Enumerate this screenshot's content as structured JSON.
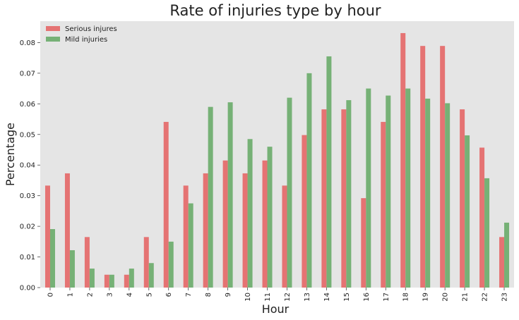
{
  "chart_data": {
    "type": "bar",
    "title": "Rate of injuries type by hour",
    "xlabel": "Hour",
    "ylabel": "Percentage",
    "categories": [
      "0",
      "1",
      "2",
      "3",
      "4",
      "5",
      "6",
      "7",
      "8",
      "9",
      "10",
      "11",
      "12",
      "13",
      "14",
      "15",
      "16",
      "17",
      "18",
      "19",
      "20",
      "21",
      "22",
      "23"
    ],
    "series": [
      {
        "name": "Serious injures",
        "color": "#e57373",
        "values": [
          0.0333,
          0.0373,
          0.0165,
          0.0042,
          0.0042,
          0.0165,
          0.0541,
          0.0333,
          0.0373,
          0.0415,
          0.0373,
          0.0415,
          0.0333,
          0.0498,
          0.0582,
          0.0582,
          0.0292,
          0.0541,
          0.0831,
          0.0789,
          0.0789,
          0.0582,
          0.0457,
          0.0165
        ]
      },
      {
        "name": "Mild injuries",
        "color": "#76b176",
        "values": [
          0.0191,
          0.0122,
          0.0062,
          0.0042,
          0.0062,
          0.008,
          0.015,
          0.0275,
          0.059,
          0.0605,
          0.0485,
          0.046,
          0.062,
          0.07,
          0.0755,
          0.0612,
          0.065,
          0.0627,
          0.065,
          0.0617,
          0.0602,
          0.0497,
          0.0357,
          0.0212
        ]
      }
    ],
    "ylim": [
      0,
      0.087
    ],
    "yticks": [
      "0.00",
      "0.01",
      "0.02",
      "0.03",
      "0.04",
      "0.05",
      "0.06",
      "0.07",
      "0.08"
    ],
    "grid": false,
    "legend": "top-left",
    "background": "#e5e5e5"
  }
}
